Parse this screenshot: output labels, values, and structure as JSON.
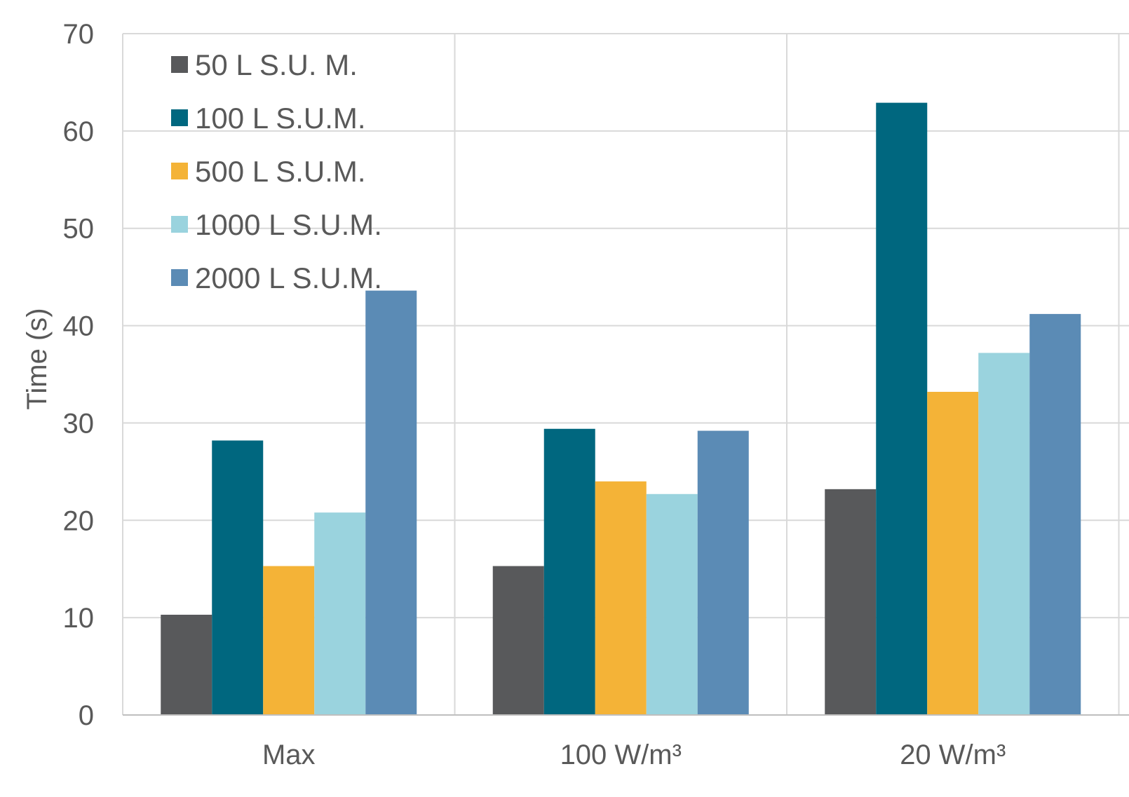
{
  "chart_data": {
    "type": "bar",
    "title": "",
    "xlabel": "",
    "ylabel": "Time (s)",
    "ylim": [
      0,
      70
    ],
    "yticks": [
      0,
      10,
      20,
      30,
      40,
      50,
      60,
      70
    ],
    "grid": true,
    "legend_position": "top-left",
    "categories": [
      "Max",
      "100 W/m³",
      "20 W/m³"
    ],
    "series": [
      {
        "name": "50 L S.U. M.",
        "color": "#58595b",
        "values": [
          10.3,
          15.3,
          23.2
        ]
      },
      {
        "name": "100 L S.U.M.",
        "color": "#00677f",
        "values": [
          28.2,
          29.4,
          62.9
        ]
      },
      {
        "name": "500 L S.U.M.",
        "color": "#f4b337",
        "values": [
          15.3,
          24.0,
          33.2
        ]
      },
      {
        "name": "1000 L S.U.M.",
        "color": "#9ad3de",
        "values": [
          20.8,
          22.7,
          37.2
        ]
      },
      {
        "name": "2000 L S.U.M.",
        "color": "#5b8bb5",
        "values": [
          43.6,
          29.2,
          41.2
        ]
      }
    ]
  }
}
